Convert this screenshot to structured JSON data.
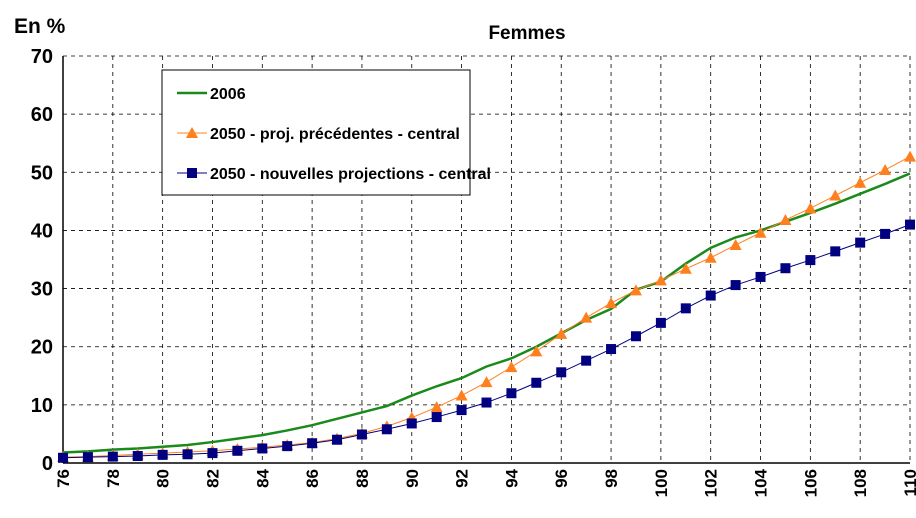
{
  "chart_data": {
    "type": "line",
    "title": "Femmes",
    "y_label": "En %",
    "x": [
      76,
      77,
      78,
      79,
      80,
      81,
      82,
      83,
      84,
      85,
      86,
      87,
      88,
      89,
      90,
      91,
      92,
      93,
      94,
      95,
      96,
      97,
      98,
      99,
      100,
      101,
      102,
      103,
      104,
      105,
      106,
      107,
      108,
      109,
      110
    ],
    "series": [
      {
        "name": "2006",
        "color": "#1a8a1a",
        "marker": "none",
        "values": [
          1.8,
          2.0,
          2.3,
          2.5,
          2.8,
          3.1,
          3.6,
          4.2,
          4.8,
          5.6,
          6.5,
          7.6,
          8.7,
          9.8,
          11.6,
          13.2,
          14.6,
          16.6,
          18.0,
          20.0,
          22.3,
          24.6,
          26.5,
          29.8,
          31.2,
          34.3,
          37.0,
          38.8,
          40.0,
          41.5,
          43.0,
          44.6,
          46.3,
          48.0,
          49.8
        ]
      },
      {
        "name": "2050 - proj. précédentes - central",
        "color": "#ff7f1f",
        "marker": "triangle",
        "values": [
          1.0,
          1.1,
          1.3,
          1.5,
          1.7,
          1.9,
          2.1,
          2.4,
          2.7,
          3.1,
          3.5,
          4.2,
          5.1,
          6.3,
          7.8,
          9.6,
          11.6,
          13.9,
          16.5,
          19.2,
          22.2,
          25.0,
          27.5,
          29.7,
          31.4,
          33.4,
          35.3,
          37.5,
          39.6,
          41.8,
          43.8,
          46.0,
          48.2,
          50.4,
          52.7
        ]
      },
      {
        "name": "2050 - nouvelles projections - central",
        "color": "#000080",
        "marker": "square",
        "values": [
          0.9,
          1.0,
          1.1,
          1.2,
          1.4,
          1.5,
          1.7,
          2.1,
          2.5,
          2.9,
          3.4,
          4.0,
          4.9,
          5.8,
          6.8,
          7.9,
          9.1,
          10.4,
          12.0,
          13.8,
          15.6,
          17.6,
          19.6,
          21.8,
          24.1,
          26.6,
          28.8,
          30.6,
          32.0,
          33.5,
          34.9,
          36.4,
          37.9,
          39.4,
          41.0
        ]
      }
    ],
    "xlim": [
      76,
      110
    ],
    "xticks": [
      76,
      78,
      80,
      82,
      84,
      86,
      88,
      90,
      92,
      94,
      96,
      98,
      100,
      102,
      104,
      106,
      108,
      110
    ],
    "ylim": [
      0,
      70
    ],
    "yticks": [
      0,
      10,
      20,
      30,
      40,
      50,
      60,
      70
    ],
    "grid": true,
    "legend": "top-left"
  }
}
